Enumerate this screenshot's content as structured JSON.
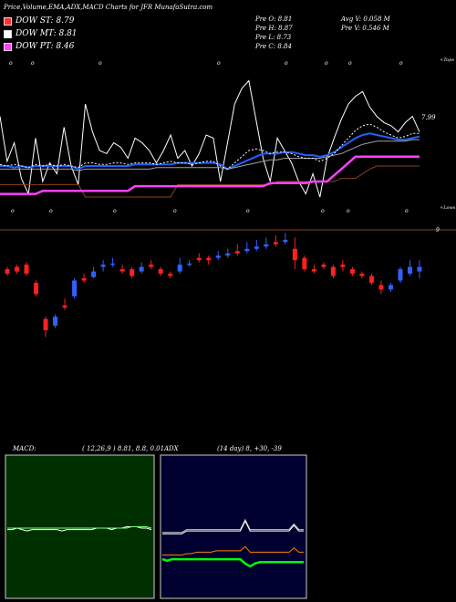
{
  "header": {
    "title": "Price,Volume,EMA,ADX,MACD Charts for JFR MunafaSutra.com"
  },
  "legend": [
    {
      "label": "DOW ST: 8.79",
      "color": "#ff3030"
    },
    {
      "label": "DOW MT: 8.81",
      "color": "#ffffff"
    },
    {
      "label": "DOW PT: 8.46",
      "color": "#ff40ff"
    }
  ],
  "stats": {
    "prev_open": "Pre  O: 8.81",
    "prev_high": "Pre  H: 8.87",
    "prev_low": "Pre  L: 8.73",
    "prev_close": "Pre  C: 8.84",
    "avg_volume": "Avg V: 0.058  M",
    "prev_volume": "Pre  V: 0.546  M"
  },
  "chart_data": [
    {
      "type": "line",
      "name": "price-ema-panel",
      "price_label": "7.99",
      "side_top": "+Tops",
      "side_low": "+Lows",
      "right_mark": "9",
      "tick_glyph": "o",
      "series": [
        {
          "key": "price_line",
          "color": "#ffffff",
          "values": [
            0.72,
            0.43,
            0.55,
            0.32,
            0.22,
            0.58,
            0.3,
            0.42,
            0.35,
            0.65,
            0.4,
            0.28,
            0.8,
            0.62,
            0.5,
            0.48,
            0.55,
            0.52,
            0.45,
            0.58,
            0.55,
            0.5,
            0.42,
            0.5,
            0.6,
            0.45,
            0.5,
            0.4,
            0.48,
            0.6,
            0.58,
            0.3,
            0.55,
            0.8,
            0.9,
            0.95,
            0.7,
            0.45,
            0.3,
            0.58,
            0.5,
            0.42,
            0.3,
            0.22,
            0.35,
            0.2,
            0.45,
            0.58,
            0.7,
            0.8,
            0.85,
            0.88,
            0.78,
            0.72,
            0.68,
            0.66,
            0.62,
            0.68,
            0.72,
            0.62
          ]
        },
        {
          "key": "ema_blue",
          "color": "#2060ff",
          "values": [
            0.4,
            0.4,
            0.39,
            0.4,
            0.39,
            0.4,
            0.4,
            0.4,
            0.4,
            0.4,
            0.4,
            0.38,
            0.4,
            0.4,
            0.4,
            0.4,
            0.4,
            0.4,
            0.4,
            0.41,
            0.41,
            0.41,
            0.41,
            0.41,
            0.41,
            0.42,
            0.42,
            0.42,
            0.42,
            0.42,
            0.42,
            0.41,
            0.38,
            0.4,
            0.42,
            0.44,
            0.46,
            0.48,
            0.48,
            0.48,
            0.49,
            0.49,
            0.48,
            0.47,
            0.47,
            0.46,
            0.47,
            0.49,
            0.52,
            0.55,
            0.58,
            0.6,
            0.61,
            0.6,
            0.59,
            0.58,
            0.57,
            0.57,
            0.58,
            0.59
          ]
        },
        {
          "key": "ema_grey",
          "color": "#a0a0a0",
          "values": [
            0.38,
            0.38,
            0.38,
            0.38,
            0.38,
            0.38,
            0.38,
            0.38,
            0.38,
            0.38,
            0.38,
            0.37,
            0.38,
            0.38,
            0.38,
            0.38,
            0.38,
            0.38,
            0.38,
            0.38,
            0.38,
            0.38,
            0.39,
            0.39,
            0.39,
            0.39,
            0.39,
            0.39,
            0.39,
            0.39,
            0.39,
            0.39,
            0.38,
            0.39,
            0.4,
            0.41,
            0.42,
            0.43,
            0.44,
            0.44,
            0.45,
            0.45,
            0.45,
            0.45,
            0.45,
            0.45,
            0.46,
            0.47,
            0.48,
            0.5,
            0.52,
            0.54,
            0.55,
            0.56,
            0.56,
            0.56,
            0.56,
            0.56,
            0.57,
            0.57
          ]
        },
        {
          "key": "ema_white_dotted",
          "color": "#ffffff",
          "values": [
            0.41,
            0.4,
            0.41,
            0.4,
            0.39,
            0.41,
            0.4,
            0.41,
            0.4,
            0.41,
            0.4,
            0.39,
            0.42,
            0.42,
            0.41,
            0.41,
            0.42,
            0.42,
            0.41,
            0.42,
            0.42,
            0.42,
            0.41,
            0.42,
            0.43,
            0.42,
            0.42,
            0.41,
            0.42,
            0.43,
            0.43,
            0.4,
            0.38,
            0.42,
            0.46,
            0.5,
            0.51,
            0.5,
            0.48,
            0.49,
            0.49,
            0.48,
            0.46,
            0.45,
            0.45,
            0.43,
            0.45,
            0.48,
            0.53,
            0.58,
            0.63,
            0.66,
            0.67,
            0.65,
            0.62,
            0.6,
            0.58,
            0.59,
            0.61,
            0.61
          ]
        },
        {
          "key": "ema_brown",
          "color": "#8b4513",
          "values": [
            0.28,
            0.28,
            0.28,
            0.28,
            0.28,
            0.28,
            0.28,
            0.28,
            0.28,
            0.28,
            0.28,
            0.28,
            0.2,
            0.2,
            0.2,
            0.2,
            0.2,
            0.2,
            0.2,
            0.2,
            0.2,
            0.2,
            0.2,
            0.2,
            0.2,
            0.28,
            0.28,
            0.28,
            0.28,
            0.28,
            0.28,
            0.28,
            0.28,
            0.28,
            0.28,
            0.28,
            0.28,
            0.28,
            0.28,
            0.3,
            0.3,
            0.3,
            0.3,
            0.3,
            0.3,
            0.3,
            0.3,
            0.3,
            0.32,
            0.32,
            0.32,
            0.35,
            0.38,
            0.4,
            0.4,
            0.4,
            0.4,
            0.4,
            0.4,
            0.4
          ]
        },
        {
          "key": "dow_pt_magenta",
          "color": "#ff40ff",
          "values": [
            0.22,
            0.22,
            0.22,
            0.22,
            0.22,
            0.22,
            0.24,
            0.24,
            0.24,
            0.24,
            0.24,
            0.24,
            0.24,
            0.24,
            0.24,
            0.24,
            0.24,
            0.24,
            0.24,
            0.27,
            0.27,
            0.27,
            0.27,
            0.27,
            0.27,
            0.27,
            0.27,
            0.27,
            0.27,
            0.27,
            0.27,
            0.27,
            0.27,
            0.27,
            0.27,
            0.27,
            0.27,
            0.27,
            0.29,
            0.29,
            0.29,
            0.29,
            0.29,
            0.29,
            0.3,
            0.3,
            0.3,
            0.34,
            0.38,
            0.42,
            0.46,
            0.46,
            0.46,
            0.46,
            0.46,
            0.46,
            0.46,
            0.46,
            0.46,
            0.46
          ]
        }
      ]
    },
    {
      "type": "candlestick",
      "name": "price-candles",
      "candles": [
        {
          "o": 0.58,
          "c": 0.62,
          "h": 0.64,
          "l": 0.56,
          "up": false
        },
        {
          "o": 0.6,
          "c": 0.64,
          "h": 0.66,
          "l": 0.58,
          "up": false
        },
        {
          "o": 0.66,
          "c": 0.58,
          "h": 0.68,
          "l": 0.56,
          "up": false
        },
        {
          "o": 0.5,
          "c": 0.4,
          "h": 0.52,
          "l": 0.38,
          "up": false
        },
        {
          "o": 0.18,
          "c": 0.08,
          "h": 0.2,
          "l": 0.02,
          "up": false
        },
        {
          "o": 0.12,
          "c": 0.2,
          "h": 0.22,
          "l": 0.1,
          "up": true
        },
        {
          "o": 0.3,
          "c": 0.28,
          "h": 0.36,
          "l": 0.26,
          "up": false
        },
        {
          "o": 0.38,
          "c": 0.52,
          "h": 0.54,
          "l": 0.36,
          "up": true
        },
        {
          "o": 0.52,
          "c": 0.54,
          "h": 0.58,
          "l": 0.5,
          "up": false
        },
        {
          "o": 0.55,
          "c": 0.6,
          "h": 0.64,
          "l": 0.54,
          "up": true
        },
        {
          "o": 0.64,
          "c": 0.66,
          "h": 0.7,
          "l": 0.6,
          "up": true
        },
        {
          "o": 0.66,
          "c": 0.67,
          "h": 0.72,
          "l": 0.64,
          "up": true
        },
        {
          "o": 0.62,
          "c": 0.6,
          "h": 0.66,
          "l": 0.58,
          "up": false
        },
        {
          "o": 0.62,
          "c": 0.56,
          "h": 0.64,
          "l": 0.54,
          "up": false
        },
        {
          "o": 0.6,
          "c": 0.64,
          "h": 0.68,
          "l": 0.58,
          "up": true
        },
        {
          "o": 0.64,
          "c": 0.66,
          "h": 0.7,
          "l": 0.62,
          "up": false
        },
        {
          "o": 0.62,
          "c": 0.58,
          "h": 0.64,
          "l": 0.56,
          "up": false
        },
        {
          "o": 0.58,
          "c": 0.56,
          "h": 0.6,
          "l": 0.54,
          "up": false
        },
        {
          "o": 0.6,
          "c": 0.66,
          "h": 0.72,
          "l": 0.58,
          "up": true
        },
        {
          "o": 0.66,
          "c": 0.67,
          "h": 0.7,
          "l": 0.64,
          "up": true
        },
        {
          "o": 0.7,
          "c": 0.72,
          "h": 0.76,
          "l": 0.68,
          "up": false
        },
        {
          "o": 0.72,
          "c": 0.7,
          "h": 0.74,
          "l": 0.66,
          "up": false
        },
        {
          "o": 0.72,
          "c": 0.74,
          "h": 0.78,
          "l": 0.7,
          "up": true
        },
        {
          "o": 0.74,
          "c": 0.76,
          "h": 0.8,
          "l": 0.72,
          "up": true
        },
        {
          "o": 0.76,
          "c": 0.78,
          "h": 0.84,
          "l": 0.74,
          "up": false
        },
        {
          "o": 0.78,
          "c": 0.8,
          "h": 0.86,
          "l": 0.76,
          "up": true
        },
        {
          "o": 0.8,
          "c": 0.82,
          "h": 0.88,
          "l": 0.78,
          "up": true
        },
        {
          "o": 0.82,
          "c": 0.84,
          "h": 0.9,
          "l": 0.8,
          "up": true
        },
        {
          "o": 0.84,
          "c": 0.86,
          "h": 0.92,
          "l": 0.82,
          "up": false
        },
        {
          "o": 0.86,
          "c": 0.88,
          "h": 0.94,
          "l": 0.84,
          "up": true
        },
        {
          "o": 0.8,
          "c": 0.7,
          "h": 0.9,
          "l": 0.62,
          "up": false
        },
        {
          "o": 0.72,
          "c": 0.62,
          "h": 0.74,
          "l": 0.6,
          "up": false
        },
        {
          "o": 0.62,
          "c": 0.6,
          "h": 0.66,
          "l": 0.58,
          "up": false
        },
        {
          "o": 0.66,
          "c": 0.64,
          "h": 0.68,
          "l": 0.62,
          "up": false
        },
        {
          "o": 0.64,
          "c": 0.56,
          "h": 0.66,
          "l": 0.54,
          "up": false
        },
        {
          "o": 0.64,
          "c": 0.66,
          "h": 0.7,
          "l": 0.6,
          "up": false
        },
        {
          "o": 0.62,
          "c": 0.58,
          "h": 0.64,
          "l": 0.56,
          "up": false
        },
        {
          "o": 0.58,
          "c": 0.56,
          "h": 0.6,
          "l": 0.54,
          "up": false
        },
        {
          "o": 0.56,
          "c": 0.5,
          "h": 0.58,
          "l": 0.48,
          "up": false
        },
        {
          "o": 0.48,
          "c": 0.44,
          "h": 0.52,
          "l": 0.4,
          "up": false
        },
        {
          "o": 0.44,
          "c": 0.48,
          "h": 0.5,
          "l": 0.42,
          "up": true
        },
        {
          "o": 0.52,
          "c": 0.62,
          "h": 0.64,
          "l": 0.5,
          "up": true
        },
        {
          "o": 0.58,
          "c": 0.64,
          "h": 0.7,
          "l": 0.56,
          "up": true
        },
        {
          "o": 0.6,
          "c": 0.64,
          "h": 0.7,
          "l": 0.54,
          "up": true
        }
      ]
    },
    {
      "type": "line",
      "name": "macd-panel",
      "title": "MACD:",
      "params": "( 12,26,9 ) 8.81,  8.8,  0.01",
      "series": [
        {
          "key": "macd",
          "color": "#ffffff",
          "values": [
            0.48,
            0.48,
            0.49,
            0.48,
            0.47,
            0.48,
            0.48,
            0.48,
            0.48,
            0.48,
            0.48,
            0.47,
            0.48,
            0.48,
            0.48,
            0.48,
            0.48,
            0.48,
            0.49,
            0.49,
            0.49,
            0.48,
            0.49,
            0.49,
            0.5,
            0.5,
            0.5,
            0.49,
            0.49,
            0.48
          ]
        },
        {
          "key": "signal",
          "color": "#7cff7c",
          "values": [
            0.49,
            0.49,
            0.49,
            0.49,
            0.49,
            0.49,
            0.49,
            0.49,
            0.49,
            0.49,
            0.49,
            0.49,
            0.49,
            0.49,
            0.49,
            0.49,
            0.49,
            0.49,
            0.49,
            0.49,
            0.49,
            0.49,
            0.49,
            0.49,
            0.49,
            0.5,
            0.5,
            0.5,
            0.5,
            0.49
          ]
        }
      ]
    },
    {
      "type": "line",
      "name": "adx-panel",
      "title": "ADX",
      "params": "(14  day) 8,  +30,  -39",
      "series": [
        {
          "key": "adx",
          "color": "#c0c0c0",
          "values": [
            0.46,
            0.46,
            0.46,
            0.46,
            0.46,
            0.48,
            0.48,
            0.48,
            0.48,
            0.48,
            0.48,
            0.48,
            0.48,
            0.48,
            0.48,
            0.48,
            0.48,
            0.55,
            0.48,
            0.48,
            0.48,
            0.48,
            0.48,
            0.48,
            0.48,
            0.48,
            0.48,
            0.52,
            0.48,
            0.48
          ]
        },
        {
          "key": "plus_di",
          "color": "#ffffff",
          "values": [
            0.45,
            0.45,
            0.45,
            0.45,
            0.45,
            0.47,
            0.47,
            0.47,
            0.47,
            0.47,
            0.47,
            0.47,
            0.47,
            0.47,
            0.47,
            0.47,
            0.47,
            0.54,
            0.47,
            0.47,
            0.47,
            0.47,
            0.47,
            0.47,
            0.47,
            0.47,
            0.47,
            0.51,
            0.47,
            0.47
          ]
        },
        {
          "key": "minus_di",
          "color": "#ff8000",
          "values": [
            0.3,
            0.3,
            0.3,
            0.3,
            0.3,
            0.31,
            0.31,
            0.32,
            0.32,
            0.32,
            0.32,
            0.33,
            0.33,
            0.33,
            0.33,
            0.33,
            0.33,
            0.36,
            0.32,
            0.32,
            0.32,
            0.32,
            0.32,
            0.32,
            0.32,
            0.32,
            0.32,
            0.35,
            0.32,
            0.32
          ]
        },
        {
          "key": "adx_green",
          "color": "#00ff00",
          "values": [
            0.27,
            0.26,
            0.27,
            0.27,
            0.27,
            0.27,
            0.27,
            0.27,
            0.27,
            0.27,
            0.27,
            0.27,
            0.27,
            0.27,
            0.27,
            0.27,
            0.27,
            0.24,
            0.22,
            0.24,
            0.25,
            0.25,
            0.25,
            0.25,
            0.25,
            0.25,
            0.25,
            0.25,
            0.25,
            0.25
          ]
        }
      ]
    }
  ]
}
